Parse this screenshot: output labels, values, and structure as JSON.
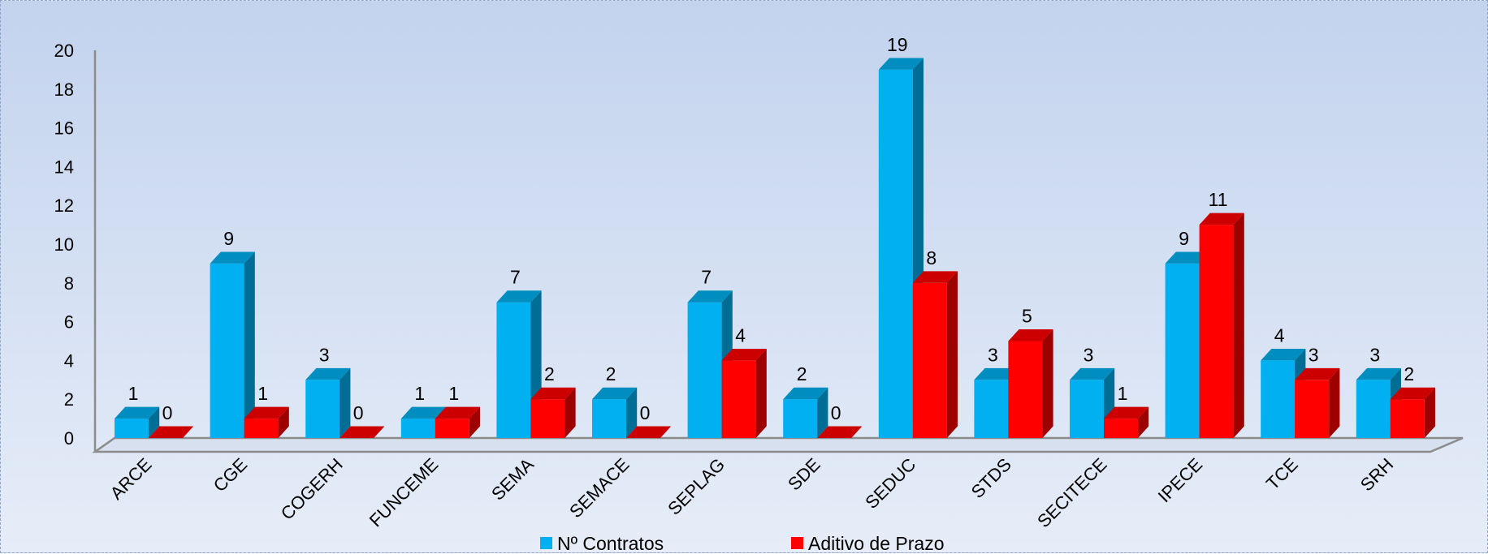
{
  "chart_data": {
    "type": "bar",
    "categories": [
      "ARCE",
      "CGE",
      "COGERH",
      "FUNCEME",
      "SEMA",
      "SEMACE",
      "SEPLAG",
      "SDE",
      "SEDUC",
      "STDS",
      "SECITECE",
      "IPECE",
      "TCE",
      "SRH"
    ],
    "series": [
      {
        "name": "Nº Contratos",
        "values": [
          1,
          9,
          3,
          1,
          7,
          2,
          7,
          2,
          19,
          3,
          3,
          9,
          4,
          3
        ],
        "color": "#00b0f0"
      },
      {
        "name": "Aditivo de Prazo",
        "values": [
          0,
          1,
          0,
          1,
          2,
          0,
          4,
          0,
          8,
          5,
          1,
          11,
          3,
          2
        ],
        "color": "#ff0000"
      }
    ],
    "yticks": [
      "0",
      "2",
      "4",
      "6",
      "8",
      "10",
      "12",
      "14",
      "16",
      "18",
      "20"
    ],
    "ylim": [
      0,
      20
    ],
    "grid": false,
    "legend_position": "bottom",
    "style": "3d-clustered-column"
  }
}
